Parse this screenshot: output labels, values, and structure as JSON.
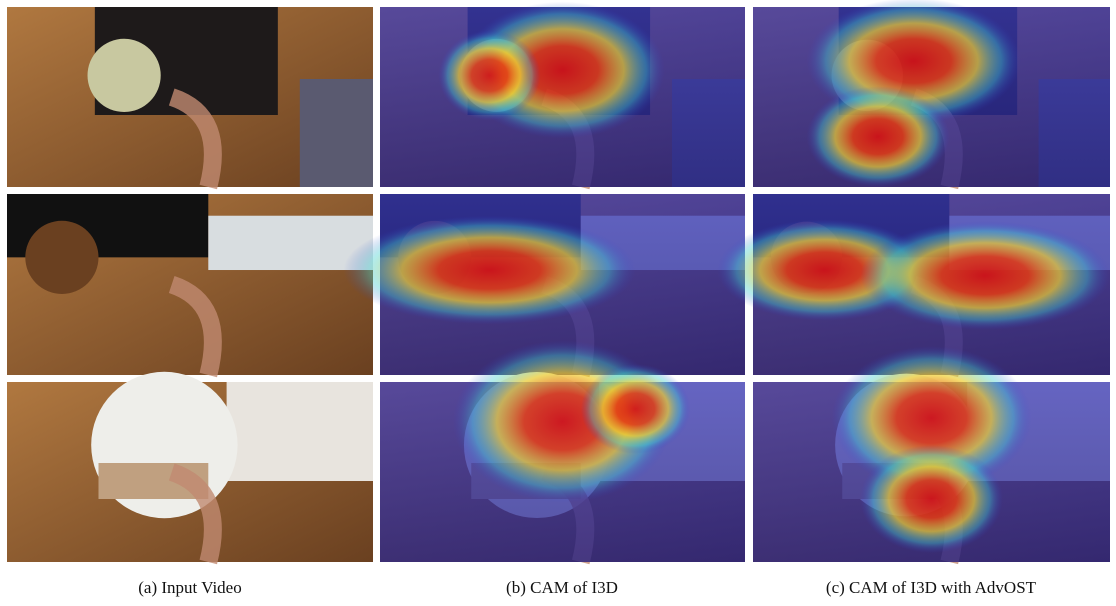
{
  "captions": [
    "(a) Input Video",
    "(b) CAM of I3D",
    "(c) CAM of I3D with AdvOST"
  ]
}
